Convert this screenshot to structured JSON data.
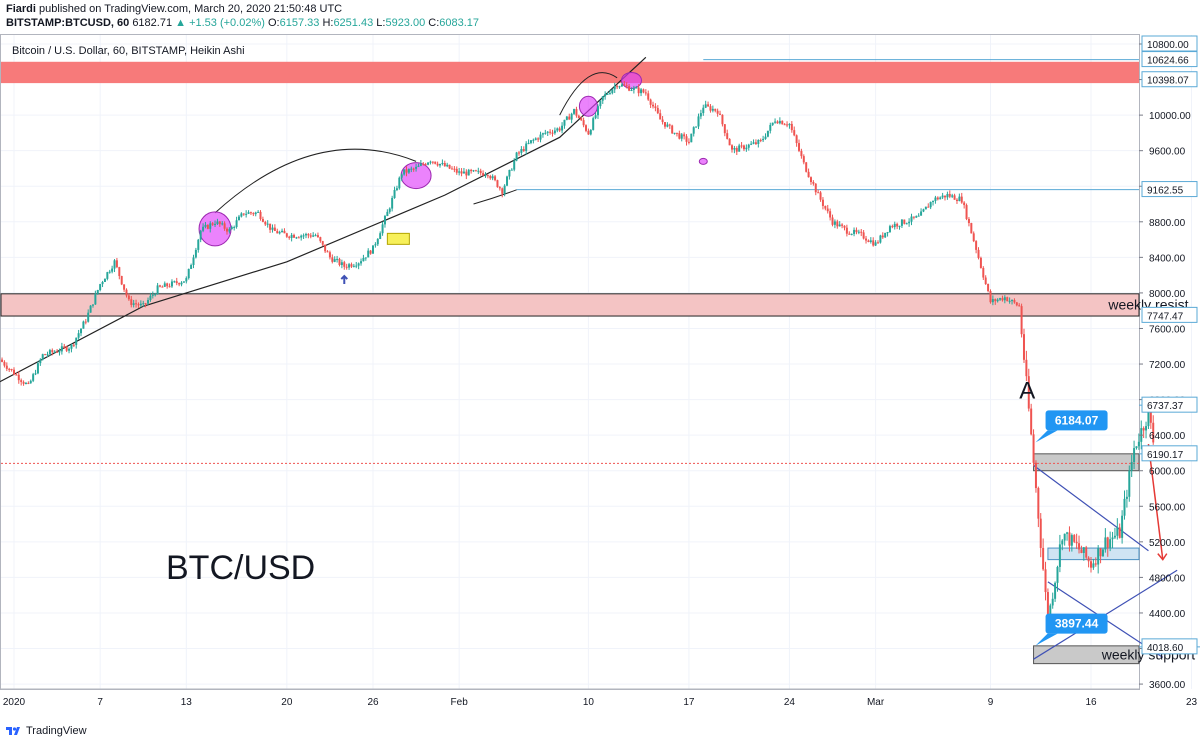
{
  "header": {
    "author": "Fiardi",
    "published_text": "published on TradingView.com, March 20, 2020 21:50:48 UTC",
    "symbol": "BITSTAMP:BTCUSD, 60",
    "last_price": "6182.71",
    "change": "▲ +1.53 (+0.02%)",
    "o_label": "O:",
    "o_value": "6157.33",
    "h_label": "H:",
    "h_value": "6251.43",
    "l_label": "L:",
    "l_value": "5923.00",
    "c_label": "C:",
    "c_value": "6083.17"
  },
  "chart_title": "Bitcoin / U.S. Dollar, 60, BITSTAMP, Heikin Ashi",
  "footer": {
    "brand": "TradingView"
  },
  "colors": {
    "up": "#26a69a",
    "down": "#ef5350",
    "resistance_zone": "#f77a7a",
    "weekly_resist_zone": "#f4c4c4",
    "support_zone": "#c9c9c9",
    "price_tag": "#2196f3",
    "channel": "#3f51b5",
    "highlight": "#e040fb",
    "target_arrow": "#e53935",
    "grid": "#f0f3fa"
  },
  "chart_data": {
    "type": "candlestick",
    "style": "Heikin Ashi",
    "title": "Bitcoin / U.S. Dollar, 60, BITSTAMP, Heikin Ashi",
    "big_label": "BTC/USD",
    "y_range": [
      3400,
      10900
    ],
    "y_ticks": [
      3600,
      4000,
      4400,
      4800,
      5200,
      5600,
      6000,
      6400,
      6800,
      7200,
      7600,
      8000,
      8400,
      8800,
      9200,
      9600,
      10000,
      10400,
      10800
    ],
    "x_tick_labels": [
      {
        "date": "2020-01-01",
        "label": "2020"
      },
      {
        "date": "2020-01-07",
        "label": "7"
      },
      {
        "date": "2020-01-13",
        "label": "13"
      },
      {
        "date": "2020-01-20",
        "label": "20"
      },
      {
        "date": "2020-01-26",
        "label": "26"
      },
      {
        "date": "2020-02-01",
        "label": "Feb"
      },
      {
        "date": "2020-02-10",
        "label": "10"
      },
      {
        "date": "2020-02-17",
        "label": "17"
      },
      {
        "date": "2020-02-24",
        "label": "24"
      },
      {
        "date": "2020-03-01",
        "label": "Mar"
      },
      {
        "date": "2020-03-09",
        "label": "9"
      },
      {
        "date": "2020-03-16",
        "label": "16"
      },
      {
        "date": "2020-03-23",
        "label": "23"
      }
    ],
    "price_path": [
      [
        "2019-12-31",
        7250
      ],
      [
        "2020-01-02",
        6950
      ],
      [
        "2020-01-03",
        7300
      ],
      [
        "2020-01-05",
        7400
      ],
      [
        "2020-01-06",
        7700
      ],
      [
        "2020-01-07",
        8100
      ],
      [
        "2020-01-08",
        8350
      ],
      [
        "2020-01-09",
        7900
      ],
      [
        "2020-01-10",
        7850
      ],
      [
        "2020-01-11",
        8050
      ],
      [
        "2020-01-13",
        8150
      ],
      [
        "2020-01-14",
        8700
      ],
      [
        "2020-01-15",
        8800
      ],
      [
        "2020-01-16",
        8700
      ],
      [
        "2020-01-17",
        8900
      ],
      [
        "2020-01-18",
        8900
      ],
      [
        "2020-01-19",
        8700
      ],
      [
        "2020-01-20",
        8650
      ],
      [
        "2020-01-22",
        8650
      ],
      [
        "2020-01-23",
        8400
      ],
      [
        "2020-01-24",
        8300
      ],
      [
        "2020-01-25",
        8350
      ],
      [
        "2020-01-26",
        8500
      ],
      [
        "2020-01-27",
        8900
      ],
      [
        "2020-01-28",
        9350
      ],
      [
        "2020-01-29",
        9400
      ],
      [
        "2020-01-30",
        9500
      ],
      [
        "2020-02-01",
        9350
      ],
      [
        "2020-02-03",
        9350
      ],
      [
        "2020-02-04",
        9150
      ],
      [
        "2020-02-05",
        9550
      ],
      [
        "2020-02-06",
        9700
      ],
      [
        "2020-02-07",
        9800
      ],
      [
        "2020-02-08",
        9850
      ],
      [
        "2020-02-09",
        10050
      ],
      [
        "2020-02-10",
        9800
      ],
      [
        "2020-02-11",
        10200
      ],
      [
        "2020-02-12",
        10350
      ],
      [
        "2020-02-13",
        10300
      ],
      [
        "2020-02-14",
        10250
      ],
      [
        "2020-02-15",
        9950
      ],
      [
        "2020-02-16",
        9800
      ],
      [
        "2020-02-17",
        9700
      ],
      [
        "2020-02-18",
        10100
      ],
      [
        "2020-02-19",
        10050
      ],
      [
        "2020-02-20",
        9600
      ],
      [
        "2020-02-21",
        9650
      ],
      [
        "2020-02-22",
        9700
      ],
      [
        "2020-02-23",
        9950
      ],
      [
        "2020-02-24",
        9900
      ],
      [
        "2020-02-25",
        9450
      ],
      [
        "2020-02-26",
        9100
      ],
      [
        "2020-02-27",
        8800
      ],
      [
        "2020-02-28",
        8700
      ],
      [
        "2020-02-29",
        8650
      ],
      [
        "2020-03-01",
        8550
      ],
      [
        "2020-03-02",
        8750
      ],
      [
        "2020-03-03",
        8800
      ],
      [
        "2020-03-04",
        8850
      ],
      [
        "2020-03-05",
        9050
      ],
      [
        "2020-03-06",
        9100
      ],
      [
        "2020-03-07",
        9050
      ],
      [
        "2020-03-08",
        8500
      ],
      [
        "2020-03-09",
        7900
      ],
      [
        "2020-03-10",
        7950
      ],
      [
        "2020-03-11",
        7850
      ],
      [
        "2020-03-12",
        6100
      ],
      [
        "2020-03-13",
        4300
      ],
      [
        "2020-03-14",
        5300
      ],
      [
        "2020-03-15",
        5150
      ],
      [
        "2020-03-16",
        4950
      ],
      [
        "2020-03-17",
        5200
      ],
      [
        "2020-03-18",
        5300
      ],
      [
        "2020-03-19",
        6250
      ],
      [
        "2020-03-20",
        6650
      ],
      [
        "2020-03-20T12",
        6180
      ]
    ],
    "horizontal_levels": [
      {
        "label": "10624.66",
        "price": 10624.66,
        "from": "2020-02-18"
      },
      {
        "label": "9162.55",
        "price": 9162.55,
        "from": "2020-02-05"
      },
      {
        "label": "6737.37",
        "price": 6737.37,
        "from": "2020-03-20"
      },
      {
        "label": "6190.17",
        "price": 6190.17,
        "from": "2020-03-21"
      },
      {
        "label": "4018.60",
        "price": 4018.6,
        "from": "2020-03-26"
      }
    ],
    "axis_price_tags": [
      {
        "label": "10800.00",
        "price": 10800
      },
      {
        "label": "10398.07",
        "price": 10398.07
      },
      {
        "label": "7747.47",
        "price": 7747.47
      }
    ],
    "current_price": 6083.17,
    "zones": [
      {
        "name": "resistance-zone",
        "from": "2019-12-31",
        "to": "2020-03-30",
        "top": 10600,
        "bottom": 10360
      },
      {
        "name": "weekly-resist-zone",
        "label": "weekly resist",
        "from": "2019-12-31",
        "to": "2020-03-30",
        "top": 7990,
        "bottom": 7740
      },
      {
        "name": "weekly-support-zone",
        "label": "weekly support",
        "from": "2020-03-12",
        "to": "2020-03-26",
        "top": 4030,
        "bottom": 3830
      },
      {
        "name": "resistance-box",
        "from": "2020-03-12",
        "to": "2020-03-25",
        "top": 6190,
        "bottom": 6000
      },
      {
        "name": "target-box",
        "from": "2020-03-13",
        "to": "2020-03-22",
        "top": 5130,
        "bottom": 5000
      }
    ],
    "price_tags": [
      {
        "label": "6184.07",
        "date": "2020-03-12",
        "price": 6184.07
      },
      {
        "label": "3897.44",
        "date": "2020-03-12",
        "price": 3897.44
      }
    ],
    "annotations": [
      {
        "text": "A",
        "date": "2020-03-11",
        "price": 6900
      },
      {
        "text": "weekly resist",
        "date": "2020-03-20",
        "price": 7870
      },
      {
        "text": "weekly support",
        "date": "2020-03-20",
        "price": 3935
      }
    ]
  }
}
